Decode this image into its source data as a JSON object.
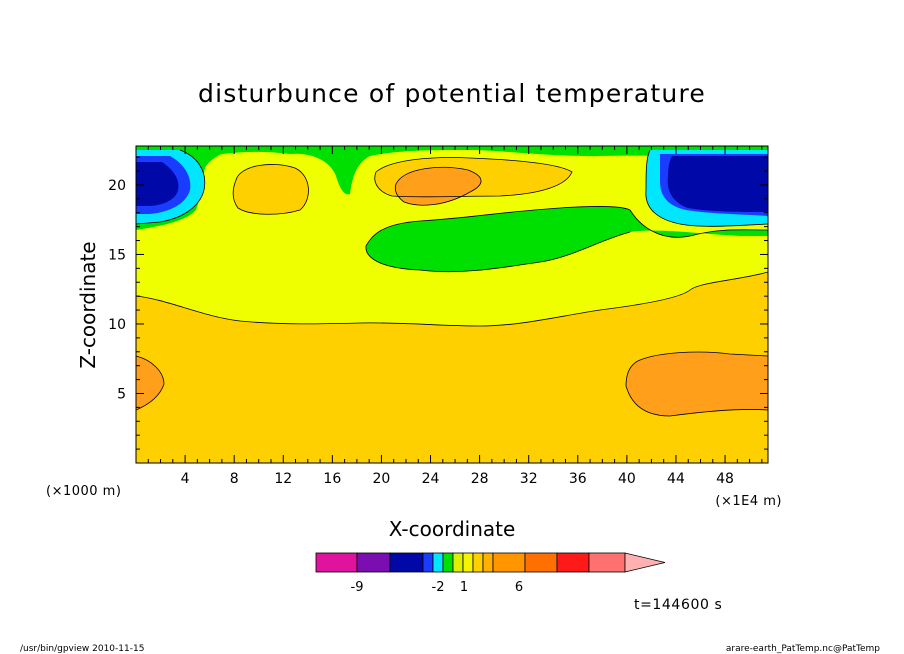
{
  "title": "disturbunce of potential temperature",
  "footer": {
    "left": "/usr/bin/gpview  2010-11-15",
    "right": "arare-earth_PatTemp.nc@PatTemp"
  },
  "timestamp": "t=144600 s",
  "chart_data": {
    "type": "contour-filled",
    "title": "disturbunce of potential temperature",
    "xlabel": "X-coordinate",
    "ylabel": "Z-coordinate",
    "x_units_left": "(×1000 m)",
    "x_units_right": "(×1E4 m)",
    "xlim": [
      0,
      51.5
    ],
    "ylim": [
      0,
      22.8
    ],
    "x_ticks": [
      4,
      8,
      12,
      16,
      20,
      24,
      28,
      32,
      36,
      40,
      44,
      48
    ],
    "y_ticks": [
      5,
      10,
      15,
      20
    ],
    "colorbar": {
      "labels": [
        {
          "text": "-9",
          "at": "-9"
        },
        {
          "text": "-2",
          "at": "-2"
        },
        {
          "text": "1",
          "at": "1"
        },
        {
          "text": "6",
          "at": "6"
        }
      ],
      "colors": [
        "#e0139f",
        "#7a0eb0",
        "#0008a8",
        "#1a3cff",
        "#00e6ff",
        "#00e000",
        "#ddf000",
        "#f5f500",
        "#ffd000",
        "#ffb000",
        "#ff9600",
        "#ff7000",
        "#ff1a1a",
        "#ff7070",
        "#ffb0b0"
      ]
    },
    "regions": [
      {
        "name": "low-level orange left",
        "x": [
          0,
          2.2
        ],
        "z": [
          4,
          8
        ]
      },
      {
        "name": "low-level orange right",
        "x": [
          39.5,
          51.5
        ],
        "z": [
          3.5,
          8.3
        ]
      },
      {
        "name": "upper cold core left",
        "x": [
          0,
          4
        ],
        "z": [
          18,
          22
        ]
      },
      {
        "name": "upper cold core right",
        "x": [
          43,
          51.5
        ],
        "z": [
          18.5,
          22
        ]
      },
      {
        "name": "warm blob upper middle",
        "x": [
          21,
          28
        ],
        "z": [
          19,
          21.5
        ]
      }
    ]
  }
}
